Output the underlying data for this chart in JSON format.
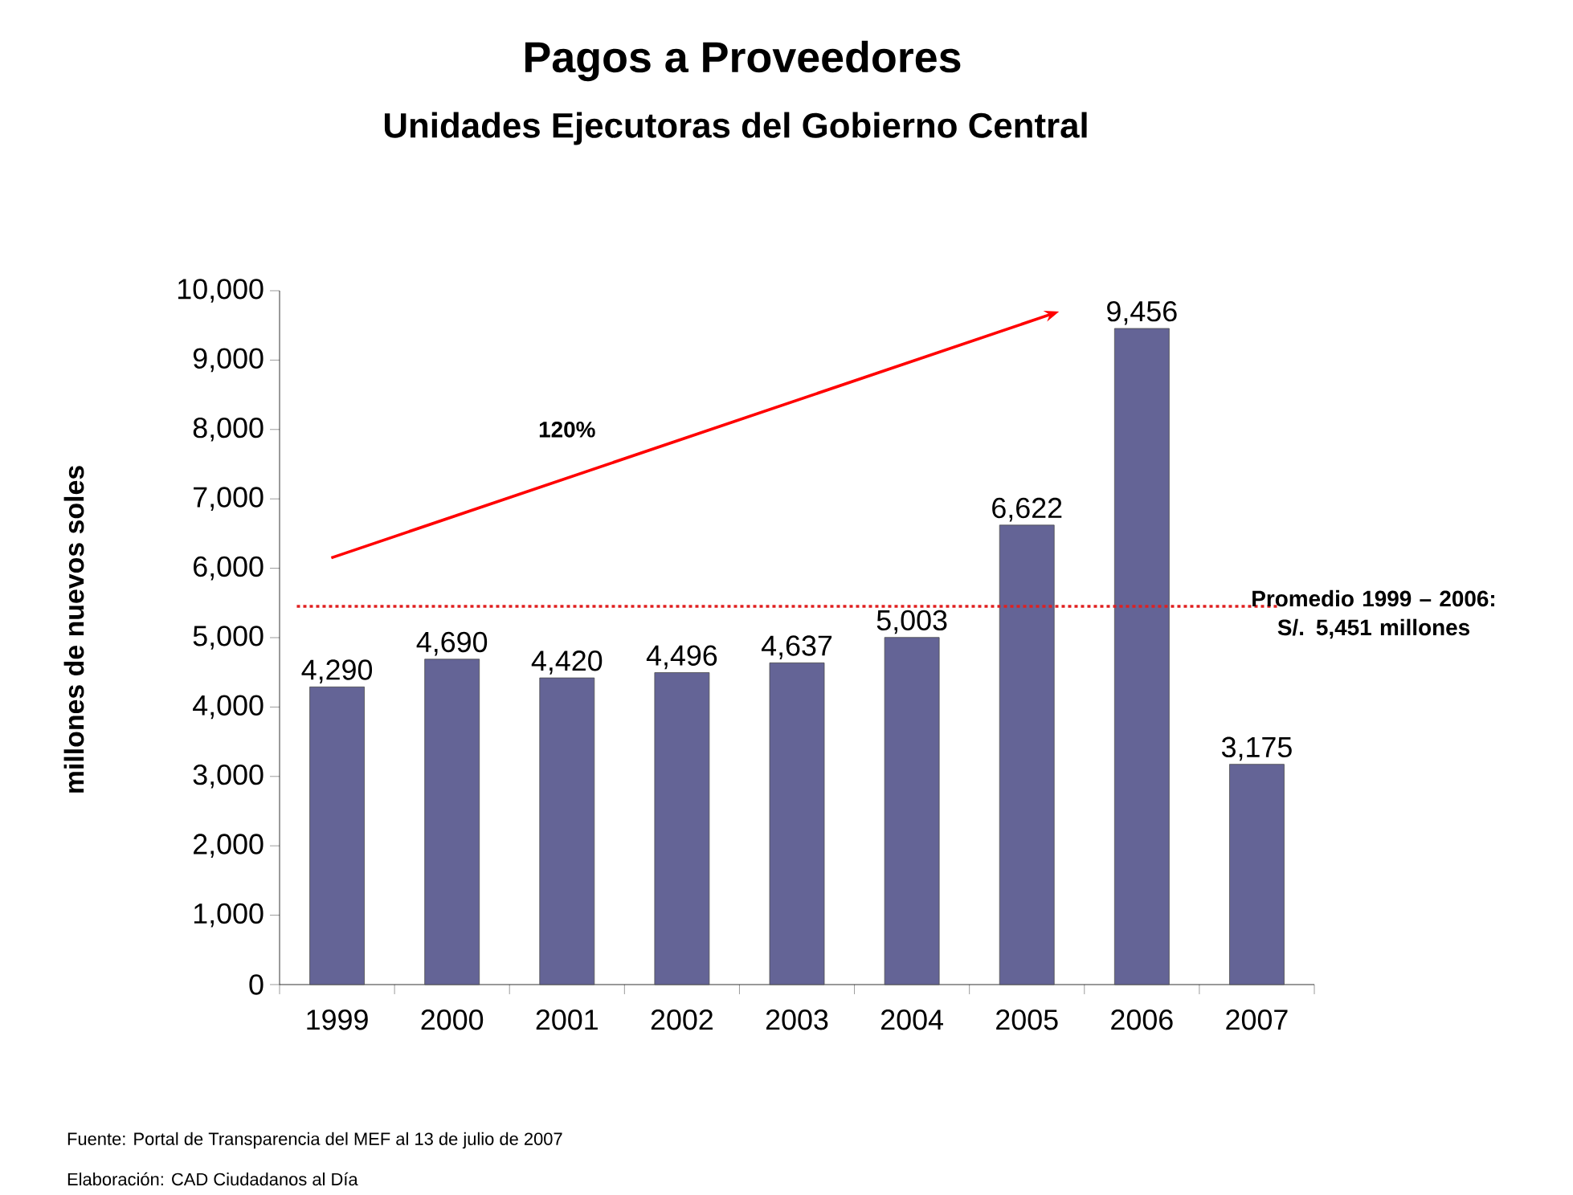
{
  "chart_data": {
    "type": "bar",
    "title": "Pagos a Proveedores",
    "subtitle": "Unidades Ejecutoras del Gobierno Central",
    "ylabel": "millones de nuevos soles",
    "categories": [
      "1999",
      "2000",
      "2001",
      "2002",
      "2003",
      "2004",
      "2005",
      "2006",
      "2007"
    ],
    "values": [
      4290,
      4690,
      4420,
      4496,
      4637,
      5003,
      6622,
      9456,
      3175
    ],
    "value_labels": [
      "4,290",
      "4,690",
      "4,420",
      "4,496",
      "4,637",
      "5,003",
      "6,622",
      "9,456",
      "3,175"
    ],
    "color": "#646496",
    "ylim": [
      0,
      10000
    ],
    "yticks": [
      0,
      {
        "value": 1000,
        "label": "1,000"
      },
      {
        "value": 2000,
        "label": "2,000"
      },
      {
        "value": 3000,
        "label": "3,000"
      },
      {
        "value": 4000,
        "label": "4,000"
      },
      {
        "value": 5000,
        "label": "5,000"
      },
      {
        "value": 6000,
        "label": "6,000"
      },
      {
        "value": 7000,
        "label": "7,000"
      },
      {
        "value": 8000,
        "label": "8,000"
      },
      {
        "value": 9000,
        "label": "9,000"
      },
      {
        "value": 10000,
        "label": "10,000"
      }
    ],
    "ref_lines": [
      {
        "axis": "y",
        "value": 5451,
        "label": "Promedio 1999 – 2006: S/. 5,451 millones",
        "color": "#e02020",
        "line_style": "dotted"
      }
    ],
    "annotations": [
      "120%",
      "Fuente: Portal de Transparencia del MEF al 13 de julio de 2007",
      "Elaboración: CAD Ciudadanos al Día"
    ],
    "grid": false
  }
}
